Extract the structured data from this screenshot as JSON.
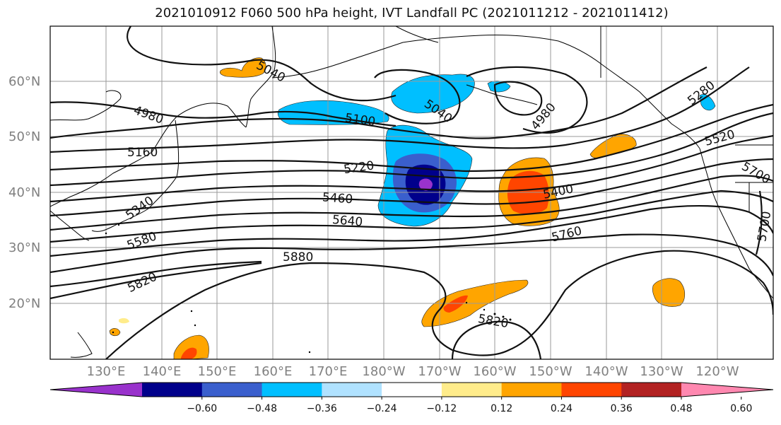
{
  "title": "2021010912 F060 500 hPa height, IVT Landfall PC (2021011212 - 2021011412)",
  "map": {
    "lat_labels": [
      {
        "label": "60°N",
        "lat": 60
      },
      {
        "label": "50°N",
        "lat": 50
      },
      {
        "label": "40°N",
        "lat": 40
      },
      {
        "label": "30°N",
        "lat": 30
      },
      {
        "label": "20°N",
        "lat": 20
      }
    ],
    "lon_labels": [
      {
        "label": "130°E",
        "lon": 130
      },
      {
        "label": "140°E",
        "lon": 140
      },
      {
        "label": "150°E",
        "lon": 150
      },
      {
        "label": "160°E",
        "lon": 160
      },
      {
        "label": "170°E",
        "lon": 170
      },
      {
        "label": "180°W",
        "lon": 180
      },
      {
        "label": "170°W",
        "lon": 190
      },
      {
        "label": "160°W",
        "lon": 200
      },
      {
        "label": "150°W",
        "lon": 210
      },
      {
        "label": "140°W",
        "lon": 220
      },
      {
        "label": "130°W",
        "lon": 230
      },
      {
        "label": "120°W",
        "lon": 240
      }
    ],
    "contour_labels": [
      "5040",
      "4980",
      "5100",
      "5040",
      "4980",
      "5280",
      "5160",
      "5220",
      "5520",
      "5340",
      "5460",
      "5400",
      "5700",
      "5640",
      "5580",
      "5760",
      "5700",
      "5880",
      "5820",
      "5820"
    ]
  },
  "colorbar": {
    "colors": [
      "#9932cc",
      "#00008b",
      "#3a5fcd",
      "#00bfff",
      "#b0e2ff",
      "#ffffff",
      "#ffec8b",
      "#ffa500",
      "#ff4500",
      "#b22222",
      "#ff88b0"
    ],
    "ticks": [
      "−0.60",
      "−0.48",
      "−0.36",
      "−0.24",
      "−0.12",
      "0.12",
      "0.24",
      "0.36",
      "0.48",
      "0.60"
    ]
  }
}
